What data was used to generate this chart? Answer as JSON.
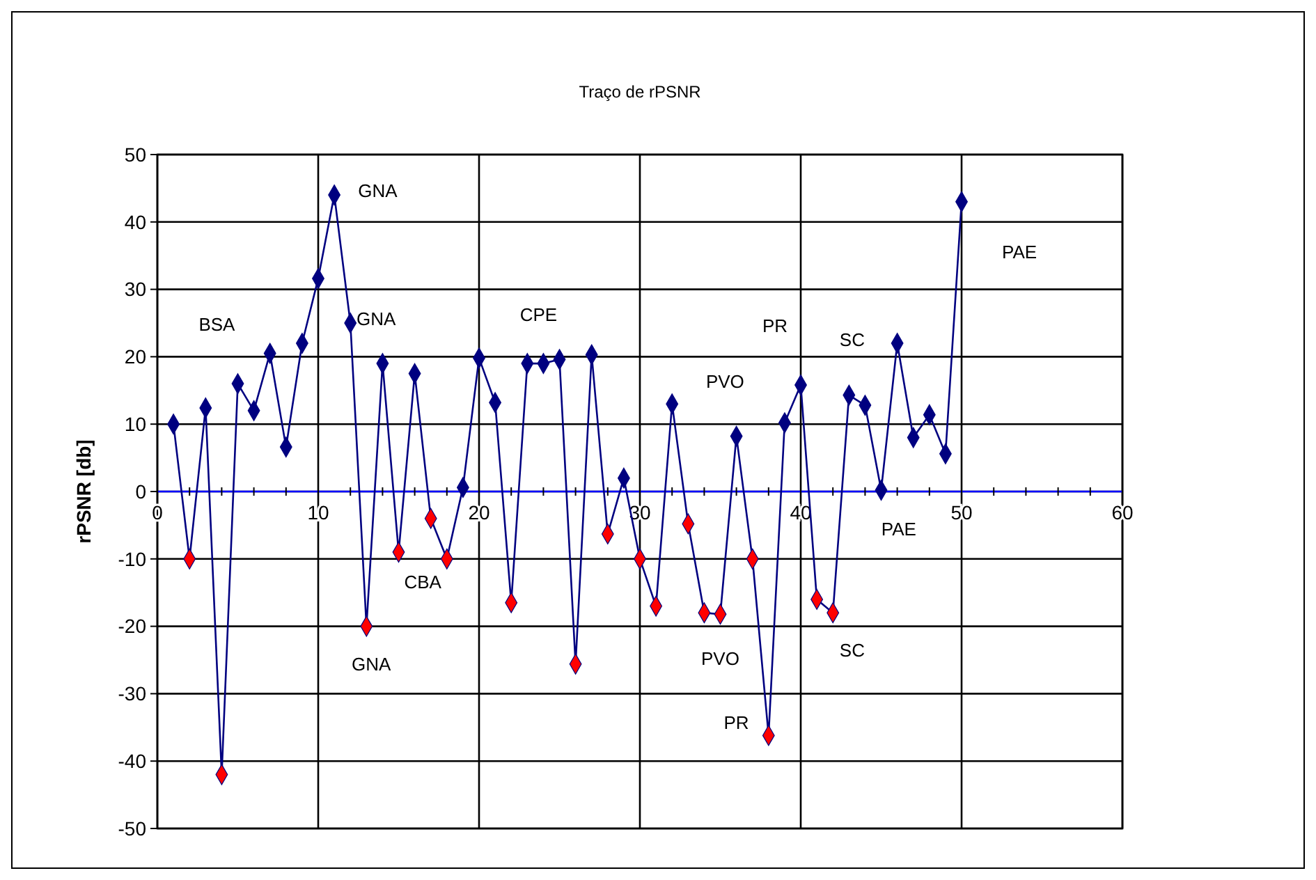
{
  "chart_data": {
    "type": "line",
    "title": "Traço de rPSNR",
    "ylabel": "rPSNR [db]",
    "x": [
      1,
      2,
      3,
      4,
      5,
      6,
      7,
      8,
      9,
      10,
      11,
      12,
      13,
      14,
      15,
      16,
      17,
      18,
      19,
      20,
      21,
      22,
      23,
      24,
      25,
      26,
      27,
      28,
      29,
      30,
      31,
      32,
      33,
      34,
      35,
      36,
      37,
      38,
      39,
      40,
      41,
      42,
      43,
      44,
      45,
      46,
      47,
      48,
      49,
      50
    ],
    "series": [
      {
        "color": "#000080",
        "values": [
          10,
          -10,
          12.4,
          -42,
          16,
          12,
          20.5,
          6.6,
          22,
          31.6,
          44,
          25,
          -20,
          19,
          -9,
          17.5,
          -4,
          -10,
          0.6,
          19.8,
          13.2,
          -16.5,
          19,
          19,
          19.6,
          -25.6,
          20.3,
          -6.3,
          2,
          -10,
          -17,
          13,
          -4.8,
          -18,
          -18.2,
          8.2,
          -10,
          -36.2,
          10.2,
          15.8,
          -16,
          -18,
          14.3,
          12.8,
          0.2,
          22,
          8,
          11.4,
          5.6,
          43
        ],
        "colors": [
          "#000080",
          "#ff0000",
          "#000080",
          "#ff0000",
          "#000080",
          "#000080",
          "#000080",
          "#000080",
          "#000080",
          "#000080",
          "#000080",
          "#000080",
          "#ff0000",
          "#000080",
          "#ff0000",
          "#000080",
          "#ff0000",
          "#ff0000",
          "#000080",
          "#000080",
          "#000080",
          "#ff0000",
          "#000080",
          "#000080",
          "#000080",
          "#ff0000",
          "#000080",
          "#ff0000",
          "#000080",
          "#ff0000",
          "#ff0000",
          "#000080",
          "#ff0000",
          "#ff0000",
          "#ff0000",
          "#000080",
          "#ff0000",
          "#ff0000",
          "#000080",
          "#000080",
          "#ff0000",
          "#ff0000",
          "#000080",
          "#000080",
          "#000080",
          "#000080",
          "#000080",
          "#000080",
          "#000080",
          "#000080"
        ]
      }
    ],
    "xlim": [
      0,
      60
    ],
    "xticks": [
      0,
      10,
      20,
      30,
      40,
      50,
      60
    ],
    "ylim": [
      -50,
      50
    ],
    "yticks": [
      -50,
      -40,
      -30,
      -20,
      -10,
      0,
      10,
      20,
      30,
      40,
      50
    ],
    "grid": true,
    "marker": "diamond",
    "line_style": "solid",
    "annotations": [
      "BSA",
      "GNA",
      "GNA",
      "GNA",
      "CBA",
      "CPE",
      "PVO",
      "PVO",
      "PR",
      "PR",
      "SC",
      "SC",
      "PAE",
      "PAE"
    ]
  }
}
